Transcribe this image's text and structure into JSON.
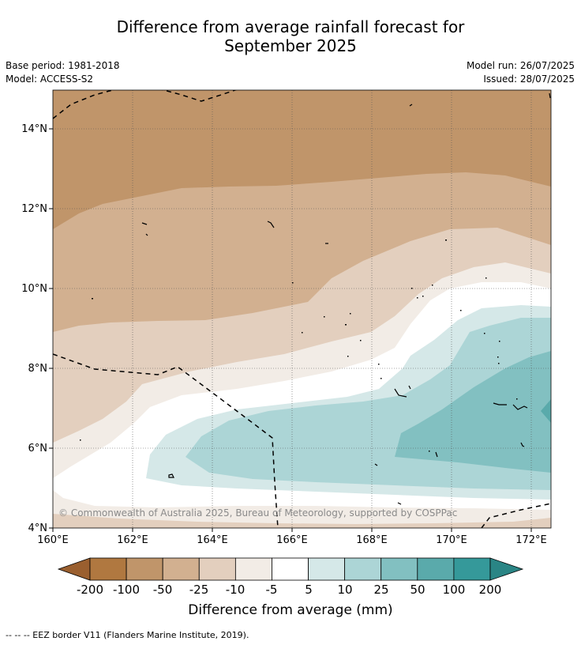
{
  "header": {
    "title_line1": "Difference from average rainfall forecast for",
    "title_line2": "September 2025",
    "base_period": "Base period: 1981-2018",
    "model": "Model: ACCESS-S2",
    "model_run": "Model run: 26/07/2025",
    "issued": "Issued: 28/07/2025"
  },
  "map": {
    "lon_range": [
      160,
      172.5
    ],
    "lat_range": [
      4,
      15
    ],
    "x_ticks": [
      "160°E",
      "162°E",
      "164°E",
      "166°E",
      "168°E",
      "170°E",
      "172°E"
    ],
    "y_ticks": [
      "4°N",
      "6°N",
      "8°N",
      "10°N",
      "12°N",
      "14°N"
    ],
    "copyright": "© Commonwealth of Australia 2025, Bureau of Meteorology, supported by COSPPac",
    "grid": true
  },
  "colorbar": {
    "labels": [
      "-200",
      "-100",
      "-50",
      "-25",
      "-10",
      "-5",
      "5",
      "10",
      "25",
      "50",
      "100",
      "200"
    ],
    "colors": [
      "#9a5f2f",
      "#b07840",
      "#c0956a",
      "#d2b090",
      "#e3cfbe",
      "#f2ece6",
      "#ffffff",
      "#d5e8e8",
      "#acd5d6",
      "#82c0c1",
      "#5aaaab",
      "#35999a",
      "#2a8585"
    ],
    "title": "Difference from average (mm)"
  },
  "legend_note": "--  --  -- EEZ border V11 (Flanders Marine Institute, 2019)."
}
